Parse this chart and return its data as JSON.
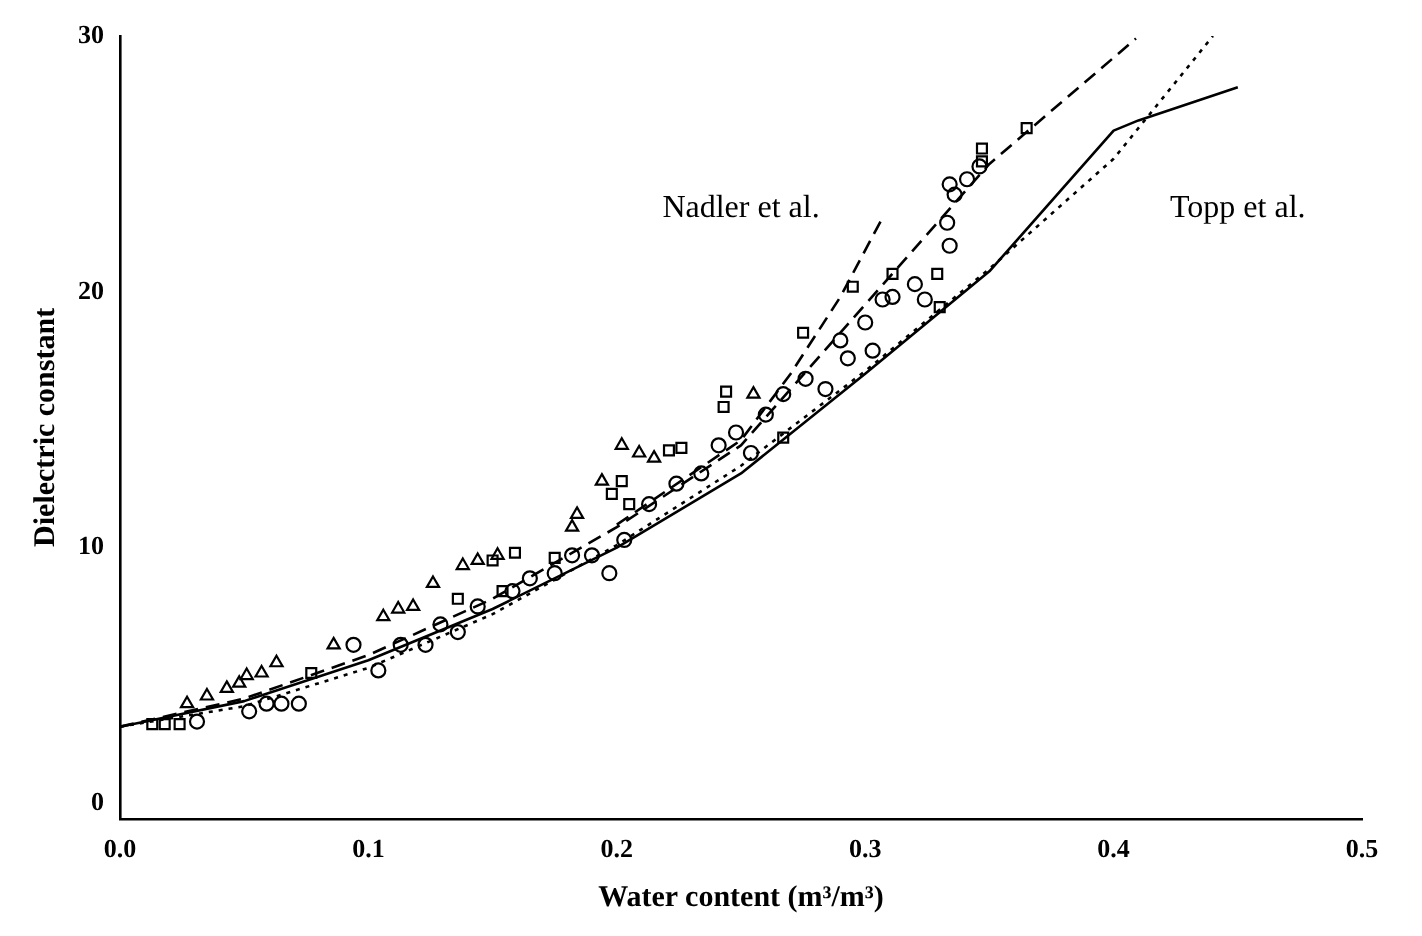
{
  "chart_data": {
    "type": "scatter",
    "xlabel": "Water content (m³/m³)",
    "ylabel": "Dielectric constant",
    "xlim": [
      0,
      0.5
    ],
    "ylim": [
      -0.6,
      30
    ],
    "xticks": [
      {
        "value": 0,
        "label": "0.0"
      },
      0.1,
      0.2,
      0.3,
      0.4,
      0.5
    ],
    "yticks": [
      0,
      10,
      20,
      30
    ],
    "grid": false,
    "legend": false,
    "annotations": [
      "Nadler et al.",
      "Topp et al."
    ],
    "series": [
      {
        "type": "scatter",
        "marker": "triangle",
        "color": "#000000",
        "x": [
          0.027,
          0.035,
          0.043,
          0.048,
          0.051,
          0.057,
          0.063,
          0.086,
          0.106,
          0.112,
          0.118,
          0.126,
          0.138,
          0.144,
          0.152,
          0.182,
          0.184,
          0.194,
          0.202,
          0.209,
          0.215,
          0.255
        ],
        "values": [
          3.9,
          4.2,
          4.5,
          4.7,
          5.0,
          5.1,
          5.5,
          6.2,
          7.3,
          7.6,
          7.7,
          8.6,
          9.3,
          9.5,
          9.7,
          10.8,
          11.3,
          12.6,
          14.0,
          13.7,
          13.5,
          16.0
        ]
      },
      {
        "type": "scatter",
        "marker": "square",
        "color": "#000000",
        "x": [
          0.013,
          0.018,
          0.024,
          0.077,
          0.136,
          0.15,
          0.154,
          0.159,
          0.175,
          0.198,
          0.202,
          0.205,
          0.221,
          0.226,
          0.243,
          0.244,
          0.267,
          0.275,
          0.295,
          0.311,
          0.329,
          0.33,
          0.347,
          0.347,
          0.365
        ],
        "values": [
          3.1,
          3.1,
          3.1,
          5.1,
          8.0,
          9.5,
          8.3,
          9.8,
          9.6,
          12.1,
          12.6,
          11.7,
          13.8,
          13.9,
          15.5,
          16.1,
          14.3,
          18.4,
          20.2,
          20.7,
          20.7,
          19.4,
          25.1,
          25.6,
          26.4
        ]
      },
      {
        "type": "scatter",
        "marker": "circle",
        "color": "#000000",
        "x": [
          0.031,
          0.052,
          0.059,
          0.065,
          0.072,
          0.094,
          0.104,
          0.113,
          0.123,
          0.129,
          0.136,
          0.144,
          0.158,
          0.165,
          0.175,
          0.182,
          0.19,
          0.197,
          0.203,
          0.213,
          0.224,
          0.234,
          0.241,
          0.248,
          0.254,
          0.26,
          0.267,
          0.276,
          0.284,
          0.29,
          0.293,
          0.3,
          0.303,
          0.307,
          0.311,
          0.32,
          0.324,
          0.333,
          0.334,
          0.334,
          0.336,
          0.341,
          0.346
        ],
        "values": [
          3.2,
          3.6,
          3.9,
          3.9,
          3.9,
          6.2,
          5.2,
          6.2,
          6.2,
          7.0,
          6.7,
          7.7,
          8.3,
          8.8,
          9.0,
          9.7,
          9.7,
          9.0,
          10.3,
          11.7,
          12.5,
          12.9,
          14.0,
          14.5,
          13.7,
          15.2,
          16.0,
          16.6,
          16.2,
          18.1,
          17.4,
          18.8,
          17.7,
          19.7,
          19.8,
          20.3,
          19.7,
          22.7,
          21.8,
          24.2,
          23.8,
          24.4,
          24.9
        ]
      },
      {
        "type": "line",
        "line_style": "dotted",
        "color": "#000000",
        "x": [
          0,
          0.05,
          0.1,
          0.15,
          0.2,
          0.25,
          0.3,
          0.35,
          0.4,
          0.44
        ],
        "values": [
          3.0,
          3.8,
          5.3,
          7.4,
          10.1,
          13.2,
          16.9,
          20.9,
          25.2,
          30
        ]
      },
      {
        "type": "line",
        "line_style": "solid",
        "color": "#000000",
        "x": [
          0,
          0.05,
          0.1,
          0.15,
          0.2,
          0.25,
          0.3,
          0.35,
          0.4,
          0.41,
          0.45
        ],
        "values": [
          3.0,
          4.0,
          5.6,
          7.6,
          10.0,
          12.9,
          16.8,
          20.8,
          26.3,
          26.7,
          28.0
        ]
      },
      {
        "type": "line",
        "line_style": "dashed",
        "color": "#000000",
        "x": [
          0,
          0.05,
          0.1,
          0.15,
          0.2,
          0.25,
          0.3,
          0.35,
          0.409
        ],
        "values": [
          3.0,
          4.1,
          5.8,
          8.0,
          10.8,
          14.0,
          19.5,
          25.0,
          29.9
        ]
      },
      {
        "type": "line",
        "line_style": "dashed",
        "color": "#000000",
        "x": [
          0.2,
          0.25,
          0.27,
          0.29,
          0.307
        ],
        "values": [
          10.9,
          14.2,
          16.8,
          19.8,
          22.9
        ]
      }
    ]
  }
}
